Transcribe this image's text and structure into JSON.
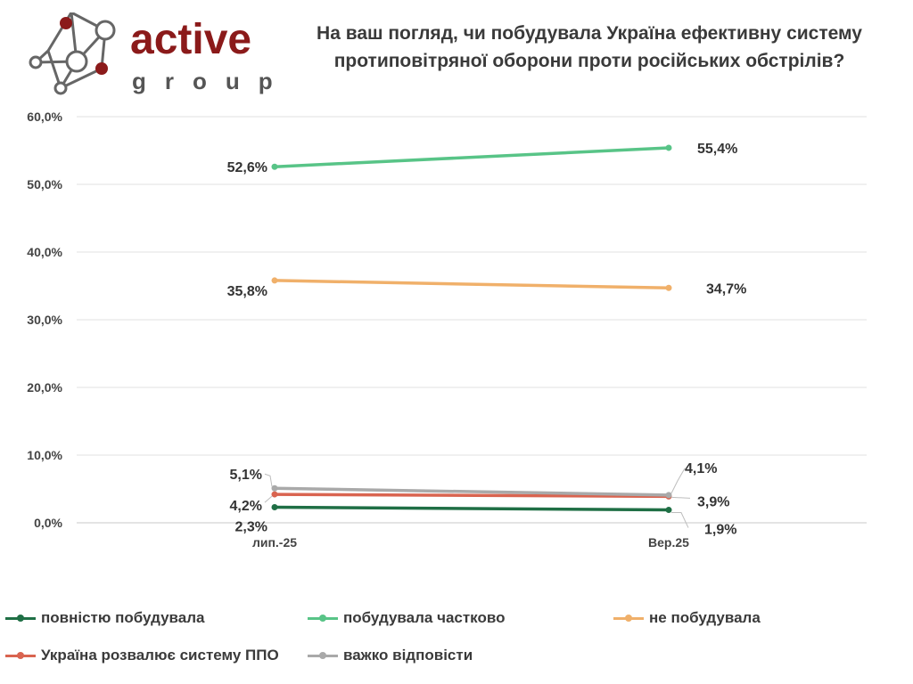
{
  "logo": {
    "word": "active",
    "sub": "group",
    "brand_color": "#8b1a1a"
  },
  "chart_data": {
    "type": "line",
    "title": "На ваш погляд, чи побудувала Україна ефективну систему протиповітряної оборони проти російських обстрілів?",
    "categories": [
      "лип.-25",
      "Вер.25"
    ],
    "ylim": [
      0,
      60
    ],
    "yticks": [
      0,
      10,
      20,
      30,
      40,
      50,
      60
    ],
    "ytick_labels": [
      "0,0%",
      "10,0%",
      "20,0%",
      "30,0%",
      "40,0%",
      "50,0%",
      "60,0%"
    ],
    "grid": true,
    "legend_position": "bottom",
    "series": [
      {
        "name": "повністю побудувала",
        "values": [
          2.3,
          1.9
        ],
        "labels": [
          "2,3%",
          "1,9%"
        ],
        "color": "#1f6f45"
      },
      {
        "name": "побудувала частково",
        "values": [
          52.6,
          55.4
        ],
        "labels": [
          "52,6%",
          "55,4%"
        ],
        "color": "#58c487"
      },
      {
        "name": "не побудувала",
        "values": [
          35.8,
          34.7
        ],
        "labels": [
          "35,8%",
          "34,7%"
        ],
        "color": "#f0b06a"
      },
      {
        "name": "Україна розвалює систему ППО",
        "values": [
          4.2,
          3.9
        ],
        "labels": [
          "4,2%",
          "3,9%"
        ],
        "color": "#d96450"
      },
      {
        "name": "важко відповісти",
        "values": [
          5.1,
          4.1
        ],
        "labels": [
          "5,1%",
          "4,1%"
        ],
        "color": "#a9a9a9"
      }
    ]
  }
}
